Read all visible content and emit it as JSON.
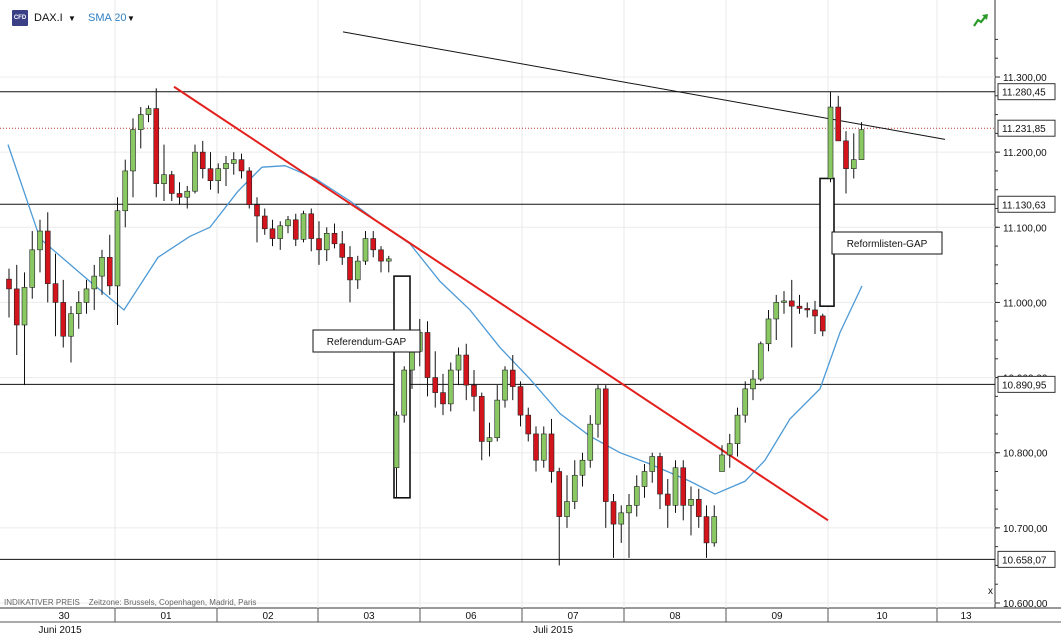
{
  "toolbar": {
    "symbol": "DAX.I",
    "indicator": "SMA 20",
    "icon_label": "CFD"
  },
  "footer_note": {
    "indicative": "INDIKATIVER PREIS",
    "timezone": "Zeitzone: Brussels, Copenhagen, Madrid, Paris"
  },
  "colors": {
    "up": "#8ac864",
    "down": "#d4141c",
    "sma": "#4d9ad6",
    "trend_red": "#e3201c",
    "trend_black": "#111111",
    "hline": "#111111",
    "dotted_price": "#c0392b"
  },
  "chart_data": {
    "type": "candlestick",
    "instrument": "DAX.I",
    "ylim": [
      10600,
      11360
    ],
    "y_ticks": [
      "10.600,00",
      "10.700,00",
      "10.800,00",
      "10.900,00",
      "11.000,00",
      "11.100,00",
      "11.200,00",
      "11.300,00"
    ],
    "y_tick_values": [
      10600,
      10700,
      10800,
      10900,
      11000,
      11100,
      11200,
      11300
    ],
    "x_day_labels": [
      "30",
      "01",
      "02",
      "03",
      "06",
      "07",
      "08",
      "09",
      "10",
      "13"
    ],
    "x_month_labels": [
      "Juni 2015",
      "Juli 2015"
    ],
    "price_labels": [
      {
        "text": "11.280,45",
        "value": 11280.45
      },
      {
        "text": "11.231,85",
        "value": 11231.85
      },
      {
        "text": "11.130,63",
        "value": 11130.63
      },
      {
        "text": "10.890,95",
        "value": 10890.95
      },
      {
        "text": "10.658,07",
        "value": 10658.07
      }
    ],
    "annotations": [
      {
        "text": "Referendum-GAP",
        "gap_from": 10740,
        "gap_to": 11035
      },
      {
        "text": "Reformlisten-GAP",
        "gap_from": 10995,
        "gap_to": 11165
      }
    ],
    "candles": [
      [
        11031,
        11045,
        10980,
        11018
      ],
      [
        11018,
        11050,
        10930,
        10970
      ],
      [
        10970,
        11040,
        10890,
        11020
      ],
      [
        11020,
        11095,
        11005,
        11070
      ],
      [
        11070,
        11110,
        11040,
        11095
      ],
      [
        11095,
        11120,
        11000,
        11025
      ],
      [
        11025,
        11065,
        10955,
        11000
      ],
      [
        11000,
        11030,
        10940,
        10955
      ],
      [
        10955,
        10995,
        10920,
        10985
      ],
      [
        10985,
        11015,
        10965,
        11000
      ],
      [
        11000,
        11030,
        10985,
        11018
      ],
      [
        11018,
        11050,
        10990,
        11035
      ],
      [
        11035,
        11070,
        11010,
        11060
      ],
      [
        11060,
        11090,
        11010,
        11022
      ],
      [
        11022,
        11140,
        10970,
        11122
      ],
      [
        11122,
        11190,
        11100,
        11175
      ],
      [
        11175,
        11245,
        11140,
        11230
      ],
      [
        11230,
        11260,
        11205,
        11250
      ],
      [
        11250,
        11262,
        11240,
        11258
      ],
      [
        11258,
        11285,
        11140,
        11158
      ],
      [
        11158,
        11210,
        11135,
        11170
      ],
      [
        11170,
        11175,
        11135,
        11145
      ],
      [
        11145,
        11160,
        11130,
        11140
      ],
      [
        11140,
        11155,
        11125,
        11148
      ],
      [
        11148,
        11210,
        11145,
        11200
      ],
      [
        11200,
        11215,
        11165,
        11178
      ],
      [
        11178,
        11200,
        11150,
        11162
      ],
      [
        11162,
        11185,
        11145,
        11178
      ],
      [
        11178,
        11195,
        11155,
        11185
      ],
      [
        11185,
        11200,
        11170,
        11190
      ],
      [
        11190,
        11198,
        11165,
        11175
      ],
      [
        11175,
        11180,
        11125,
        11130
      ],
      [
        11130,
        11140,
        11080,
        11115
      ],
      [
        11115,
        11125,
        11090,
        11098
      ],
      [
        11098,
        11110,
        11075,
        11085
      ],
      [
        11085,
        11108,
        11070,
        11102
      ],
      [
        11102,
        11115,
        11092,
        11110
      ],
      [
        11110,
        11118,
        11075,
        11084
      ],
      [
        11084,
        11122,
        11080,
        11118
      ],
      [
        11118,
        11125,
        11068,
        11085
      ],
      [
        11085,
        11108,
        11050,
        11070
      ],
      [
        11070,
        11100,
        11055,
        11092
      ],
      [
        11092,
        11105,
        11072,
        11078
      ],
      [
        11078,
        11095,
        11050,
        11060
      ],
      [
        11060,
        11075,
        11000,
        11030
      ],
      [
        11030,
        11062,
        11018,
        11055
      ],
      [
        11055,
        11095,
        11050,
        11085
      ],
      [
        11085,
        11095,
        11060,
        11070
      ],
      [
        11070,
        11075,
        11040,
        11055
      ],
      [
        11055,
        11062,
        11040,
        11058
      ],
      [
        10780,
        10855,
        10740,
        10850
      ],
      [
        10850,
        10915,
        10840,
        10910
      ],
      [
        10910,
        10958,
        10885,
        10935
      ],
      [
        10935,
        10978,
        10915,
        10960
      ],
      [
        10960,
        10975,
        10875,
        10900
      ],
      [
        10900,
        10935,
        10860,
        10880
      ],
      [
        10880,
        10905,
        10850,
        10865
      ],
      [
        10865,
        10920,
        10855,
        10910
      ],
      [
        10910,
        10940,
        10890,
        10930
      ],
      [
        10930,
        10945,
        10870,
        10890
      ],
      [
        10890,
        10910,
        10855,
        10875
      ],
      [
        10875,
        10880,
        10790,
        10815
      ],
      [
        10815,
        10840,
        10795,
        10820
      ],
      [
        10820,
        10890,
        10815,
        10870
      ],
      [
        10870,
        10915,
        10860,
        10910
      ],
      [
        10910,
        10930,
        10870,
        10888
      ],
      [
        10888,
        10895,
        10835,
        10850
      ],
      [
        10850,
        10860,
        10815,
        10825
      ],
      [
        10825,
        10835,
        10775,
        10790
      ],
      [
        10790,
        10835,
        10780,
        10825
      ],
      [
        10825,
        10845,
        10760,
        10775
      ],
      [
        10775,
        10780,
        10650,
        10715
      ],
      [
        10715,
        10770,
        10700,
        10735
      ],
      [
        10735,
        10790,
        10725,
        10770
      ],
      [
        10770,
        10800,
        10755,
        10790
      ],
      [
        10790,
        10850,
        10780,
        10838
      ],
      [
        10838,
        10890,
        10820,
        10885
      ],
      [
        10885,
        10890,
        10700,
        10735
      ],
      [
        10735,
        10745,
        10660,
        10705
      ],
      [
        10705,
        10730,
        10680,
        10720
      ],
      [
        10720,
        10745,
        10660,
        10730
      ],
      [
        10730,
        10770,
        10715,
        10755
      ],
      [
        10755,
        10785,
        10740,
        10775
      ],
      [
        10775,
        10800,
        10760,
        10795
      ],
      [
        10795,
        10800,
        10725,
        10745
      ],
      [
        10745,
        10765,
        10700,
        10730
      ],
      [
        10730,
        10790,
        10720,
        10780
      ],
      [
        10780,
        10790,
        10710,
        10730
      ],
      [
        10730,
        10755,
        10690,
        10738
      ],
      [
        10738,
        10752,
        10700,
        10715
      ],
      [
        10715,
        10730,
        10660,
        10680
      ],
      [
        10680,
        10730,
        10675,
        10715
      ],
      [
        10775,
        10810,
        10775,
        10797
      ],
      [
        10797,
        10825,
        10780,
        10812
      ],
      [
        10812,
        10860,
        10795,
        10850
      ],
      [
        10850,
        10895,
        10840,
        10885
      ],
      [
        10885,
        10910,
        10870,
        10898
      ],
      [
        10898,
        10948,
        10895,
        10945
      ],
      [
        10945,
        10990,
        10935,
        10978
      ],
      [
        10978,
        11010,
        10950,
        11000
      ],
      [
        11000,
        11015,
        10985,
        11002
      ],
      [
        11002,
        11030,
        10940,
        10995
      ],
      [
        10995,
        11010,
        10985,
        10992
      ],
      [
        10992,
        11000,
        10980,
        10990
      ],
      [
        10990,
        11002,
        10958,
        10982
      ],
      [
        10982,
        10985,
        10955,
        10962
      ],
      [
        11165,
        11280,
        11160,
        11260
      ],
      [
        11260,
        11275,
        11215,
        11215
      ],
      [
        11215,
        11228,
        11145,
        11178
      ],
      [
        11178,
        11225,
        11165,
        11190
      ],
      [
        11190,
        11240,
        11190,
        11230
      ]
    ],
    "sma20": [
      [
        8,
        11210
      ],
      [
        40,
        11085
      ],
      [
        88,
        11030
      ],
      [
        124,
        10990
      ],
      [
        158,
        11060
      ],
      [
        190,
        11088
      ],
      [
        210,
        11100
      ],
      [
        238,
        11148
      ],
      [
        262,
        11180
      ],
      [
        285,
        11182
      ],
      [
        315,
        11165
      ],
      [
        350,
        11135
      ],
      [
        380,
        11105
      ],
      [
        410,
        11078
      ],
      [
        440,
        11028
      ],
      [
        470,
        10990
      ],
      [
        500,
        10940
      ],
      [
        530,
        10898
      ],
      [
        560,
        10852
      ],
      [
        590,
        10822
      ],
      [
        620,
        10800
      ],
      [
        650,
        10785
      ],
      [
        690,
        10762
      ],
      [
        715,
        10745
      ],
      [
        745,
        10762
      ],
      [
        765,
        10790
      ],
      [
        790,
        10845
      ],
      [
        820,
        10885
      ],
      [
        840,
        10960
      ],
      [
        862,
        11022
      ]
    ]
  }
}
